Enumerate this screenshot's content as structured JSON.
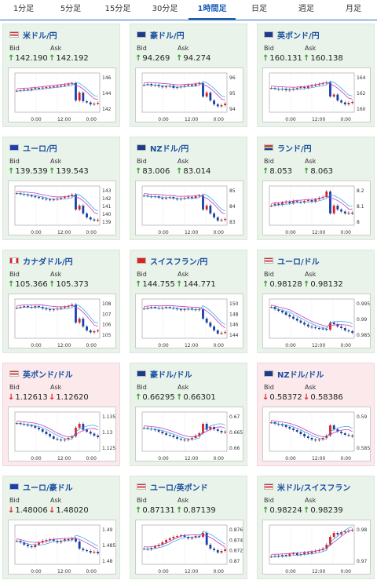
{
  "tabs": [
    {
      "label": "1分足"
    },
    {
      "label": "5分足"
    },
    {
      "label": "15分足"
    },
    {
      "label": "30分足"
    },
    {
      "label": "1時間足",
      "active": true
    },
    {
      "label": "日足"
    },
    {
      "label": "週足"
    },
    {
      "label": "月足"
    }
  ],
  "labels": {
    "bid": "Bid",
    "ask": "Ask"
  },
  "cards": [
    {
      "name": "米ドル/円",
      "flag": "us",
      "trend": "up",
      "bid": "142.190",
      "ask": "142.192",
      "bid_dir": "up",
      "ask_dir": "up",
      "color": "#1a4fa0",
      "chart_data": {
        "type": "candlestick",
        "x_ticks": [
          "0:00",
          "12:00",
          "0:00"
        ],
        "y_ticks": [
          "146",
          "144",
          "142"
        ],
        "ylim": [
          140.8,
          146.6
        ],
        "shape": [
          0.55,
          0.56,
          0.58,
          0.57,
          0.6,
          0.62,
          0.61,
          0.63,
          0.64,
          0.65,
          0.66,
          0.67,
          0.68,
          0.7,
          0.72,
          0.74,
          0.3,
          0.5,
          0.28,
          0.25,
          0.2,
          0.22,
          0.24
        ]
      }
    },
    {
      "name": "豪ドル/円",
      "flag": "au",
      "trend": "up",
      "bid": "94.269",
      "ask": "94.274",
      "bid_dir": "up",
      "ask_dir": "up",
      "chart_data": {
        "type": "candlestick",
        "x_ticks": [
          "0:00",
          "12:00",
          "0:00"
        ],
        "y_ticks": [
          "96",
          "95",
          "94"
        ],
        "ylim": [
          93.4,
          96.6
        ],
        "shape": [
          0.7,
          0.72,
          0.68,
          0.7,
          0.66,
          0.64,
          0.66,
          0.68,
          0.62,
          0.64,
          0.66,
          0.68,
          0.7,
          0.68,
          0.72,
          0.74,
          0.4,
          0.5,
          0.3,
          0.2,
          0.15,
          0.18,
          0.22
        ]
      }
    },
    {
      "name": "英ポンド/円",
      "flag": "gb",
      "trend": "up",
      "bid": "160.131",
      "ask": "160.138",
      "bid_dir": "up",
      "ask_dir": "up",
      "chart_data": {
        "type": "candlestick",
        "x_ticks": [
          "0:00",
          "12:00",
          "0:00"
        ],
        "y_ticks": [
          "164",
          "162",
          "160"
        ],
        "ylim": [
          158.8,
          164.8
        ],
        "shape": [
          0.62,
          0.6,
          0.58,
          0.6,
          0.56,
          0.58,
          0.6,
          0.62,
          0.64,
          0.62,
          0.66,
          0.68,
          0.7,
          0.72,
          0.74,
          0.76,
          0.4,
          0.45,
          0.3,
          0.25,
          0.2,
          0.24,
          0.26
        ]
      }
    },
    {
      "name": "ユーロ/円",
      "flag": "eu",
      "trend": "up",
      "bid": "139.539",
      "ask": "139.543",
      "bid_dir": "up",
      "ask_dir": "up",
      "chart_data": {
        "type": "candlestick",
        "x_ticks": [
          "0:00",
          "12:00",
          "0:00"
        ],
        "y_ticks": [
          "143",
          "142",
          "141",
          "140",
          "139"
        ],
        "ylim": [
          138.6,
          143.4
        ],
        "shape": [
          0.82,
          0.8,
          0.78,
          0.76,
          0.74,
          0.72,
          0.7,
          0.68,
          0.66,
          0.65,
          0.66,
          0.68,
          0.7,
          0.72,
          0.74,
          0.78,
          0.4,
          0.5,
          0.3,
          0.2,
          0.15,
          0.12,
          0.14
        ]
      }
    },
    {
      "name": "NZドル/円",
      "flag": "nz",
      "trend": "up",
      "bid": "83.006",
      "ask": "83.014",
      "bid_dir": "up",
      "ask_dir": "up",
      "chart_data": {
        "type": "candlestick",
        "x_ticks": [
          "0:00",
          "12:00",
          "0:00"
        ],
        "y_ticks": [
          "85",
          "84",
          "83"
        ],
        "ylim": [
          82.5,
          85.4
        ],
        "shape": [
          0.76,
          0.74,
          0.72,
          0.74,
          0.7,
          0.68,
          0.7,
          0.72,
          0.68,
          0.66,
          0.68,
          0.7,
          0.72,
          0.7,
          0.74,
          0.76,
          0.4,
          0.5,
          0.3,
          0.2,
          0.12,
          0.14,
          0.16
        ]
      }
    },
    {
      "name": "ランド/円",
      "flag": "za",
      "trend": "up",
      "bid": "8.053",
      "ask": "8.063",
      "bid_dir": "up",
      "ask_dir": "up",
      "chart_data": {
        "type": "candlestick",
        "x_ticks": [
          "0:00",
          "12:00",
          "0:00"
        ],
        "y_ticks": [
          "8.2",
          "8.1",
          "8"
        ],
        "ylim": [
          7.96,
          8.26
        ],
        "shape": [
          0.5,
          0.55,
          0.52,
          0.58,
          0.6,
          0.56,
          0.62,
          0.6,
          0.58,
          0.62,
          0.64,
          0.6,
          0.66,
          0.7,
          0.72,
          0.86,
          0.3,
          0.5,
          0.4,
          0.35,
          0.3,
          0.32,
          0.3
        ]
      }
    },
    {
      "name": "カナダドル/円",
      "flag": "ca",
      "trend": "up",
      "bid": "105.366",
      "ask": "105.373",
      "bid_dir": "up",
      "ask_dir": "up",
      "chart_data": {
        "type": "candlestick",
        "x_ticks": [
          "0:00",
          "12:00",
          "0:00"
        ],
        "y_ticks": [
          "108",
          "107",
          "106",
          "105"
        ],
        "ylim": [
          104.6,
          108.3
        ],
        "shape": [
          0.78,
          0.8,
          0.82,
          0.8,
          0.78,
          0.82,
          0.8,
          0.76,
          0.74,
          0.72,
          0.74,
          0.76,
          0.78,
          0.8,
          0.82,
          0.86,
          0.4,
          0.5,
          0.3,
          0.2,
          0.15,
          0.18,
          0.2
        ]
      }
    },
    {
      "name": "スイスフラン/円",
      "flag": "ch",
      "trend": "up",
      "bid": "144.755",
      "ask": "144.771",
      "bid_dir": "up",
      "ask_dir": "up",
      "chart_data": {
        "type": "candlestick",
        "x_ticks": [
          "0:00",
          "12:00",
          "0:00"
        ],
        "y_ticks": [
          "150",
          "148",
          "146",
          "144"
        ],
        "ylim": [
          143.2,
          150.8
        ],
        "shape": [
          0.76,
          0.78,
          0.8,
          0.78,
          0.76,
          0.78,
          0.8,
          0.78,
          0.76,
          0.74,
          0.72,
          0.74,
          0.76,
          0.74,
          0.72,
          0.74,
          0.5,
          0.4,
          0.3,
          0.2,
          0.12,
          0.14,
          0.16
        ]
      }
    },
    {
      "name": "ユーロ/ドル",
      "flag": "us",
      "trend": "up",
      "bid": "0.98128",
      "ask": "0.98132",
      "bid_dir": "up",
      "ask_dir": "up",
      "chart_data": {
        "type": "candlestick",
        "x_ticks": [
          "0:00",
          "12:00",
          "0:00"
        ],
        "y_ticks": [
          "0.995",
          "0.99",
          "0.985"
        ],
        "ylim": [
          0.9815,
          0.997
        ],
        "shape": [
          0.8,
          0.74,
          0.7,
          0.66,
          0.6,
          0.55,
          0.5,
          0.45,
          0.4,
          0.35,
          0.3,
          0.28,
          0.26,
          0.25,
          0.24,
          0.22,
          0.4,
          0.36,
          0.3,
          0.26,
          0.2,
          0.18,
          0.14
        ]
      }
    },
    {
      "name": "英ポンド/ドル",
      "flag": "us",
      "trend": "down",
      "bid": "1.12613",
      "ask": "1.12620",
      "bid_dir": "down",
      "ask_dir": "down",
      "chart_data": {
        "type": "candlestick",
        "x_ticks": [
          "0:00",
          "12:00",
          "0:00"
        ],
        "y_ticks": [
          "1.135",
          "1.13",
          "1.125"
        ],
        "ylim": [
          1.122,
          1.138
        ],
        "shape": [
          0.72,
          0.7,
          0.68,
          0.66,
          0.64,
          0.6,
          0.56,
          0.5,
          0.44,
          0.38,
          0.32,
          0.3,
          0.28,
          0.3,
          0.34,
          0.38,
          0.6,
          0.7,
          0.55,
          0.5,
          0.45,
          0.4,
          0.36
        ]
      }
    },
    {
      "name": "豪ドル/ドル",
      "flag": "au",
      "trend": "up",
      "bid": "0.66295",
      "ask": "0.66301",
      "bid_dir": "up",
      "ask_dir": "up",
      "chart_data": {
        "type": "candlestick",
        "x_ticks": [
          "0:00",
          "12:00",
          "0:00"
        ],
        "y_ticks": [
          "0.67",
          "0.665",
          "0.66"
        ],
        "ylim": [
          0.6585,
          0.6715
        ],
        "shape": [
          0.6,
          0.58,
          0.56,
          0.54,
          0.5,
          0.46,
          0.42,
          0.4,
          0.36,
          0.32,
          0.3,
          0.28,
          0.3,
          0.34,
          0.4,
          0.46,
          0.7,
          0.55,
          0.62,
          0.56,
          0.52,
          0.48,
          0.5
        ]
      }
    },
    {
      "name": "NZドル/ドル",
      "flag": "nz",
      "trend": "down",
      "bid": "0.58372",
      "ask": "0.58386",
      "bid_dir": "down",
      "ask_dir": "down",
      "chart_data": {
        "type": "candlestick",
        "x_ticks": [
          "0:00",
          "12:00",
          "0:00"
        ],
        "y_ticks": [
          "0.59",
          "0.585"
        ],
        "ylim": [
          0.5805,
          0.5925
        ],
        "shape": [
          0.74,
          0.7,
          0.68,
          0.66,
          0.62,
          0.58,
          0.54,
          0.5,
          0.44,
          0.38,
          0.34,
          0.3,
          0.28,
          0.3,
          0.34,
          0.4,
          0.66,
          0.56,
          0.5,
          0.46,
          0.42,
          0.4,
          0.38
        ]
      }
    },
    {
      "name": "ユーロ/豪ドル",
      "flag": "eu",
      "trend": "up",
      "bid": "1.48006",
      "ask": "1.48020",
      "bid_dir": "down",
      "ask_dir": "down",
      "chart_data": {
        "type": "candlestick",
        "x_ticks": [
          "0:00",
          "12:00",
          "0:00"
        ],
        "y_ticks": [
          "1.49",
          "1.485",
          "1.48"
        ],
        "ylim": [
          1.477,
          1.493
        ],
        "shape": [
          0.6,
          0.56,
          0.5,
          0.46,
          0.44,
          0.5,
          0.56,
          0.6,
          0.62,
          0.64,
          0.6,
          0.56,
          0.6,
          0.64,
          0.62,
          0.66,
          0.58,
          0.4,
          0.36,
          0.34,
          0.3,
          0.32,
          0.28
        ]
      }
    },
    {
      "name": "ユーロ/英ポンド",
      "flag": "us",
      "trend": "up",
      "bid": "0.87131",
      "ask": "0.87139",
      "bid_dir": "up",
      "ask_dir": "up",
      "chart_data": {
        "type": "candlestick",
        "x_ticks": [
          "0:00",
          "12:00",
          "0:00"
        ],
        "y_ticks": [
          "0.876",
          "0.874",
          "0.872",
          "0.87"
        ],
        "ylim": [
          0.869,
          0.877
        ],
        "shape": [
          0.4,
          0.38,
          0.42,
          0.46,
          0.5,
          0.56,
          0.62,
          0.66,
          0.7,
          0.72,
          0.74,
          0.7,
          0.66,
          0.68,
          0.72,
          0.7,
          0.8,
          0.5,
          0.4,
          0.36,
          0.3,
          0.34,
          0.38
        ]
      }
    },
    {
      "name": "米ドル/スイスフラン",
      "flag": "us",
      "trend": "up",
      "bid": "0.98224",
      "ask": "0.98239",
      "bid_dir": "up",
      "ask_dir": "up",
      "chart_data": {
        "type": "candlestick",
        "x_ticks": [
          "0:00",
          "12:00",
          "0:00"
        ],
        "y_ticks": [
          "0.98",
          "0.97"
        ],
        "ylim": [
          0.964,
          0.984
        ],
        "shape": [
          0.2,
          0.22,
          0.2,
          0.24,
          0.22,
          0.26,
          0.28,
          0.24,
          0.26,
          0.3,
          0.28,
          0.32,
          0.34,
          0.36,
          0.4,
          0.5,
          0.7,
          0.8,
          0.76,
          0.82,
          0.84,
          0.86,
          0.88
        ]
      }
    }
  ]
}
